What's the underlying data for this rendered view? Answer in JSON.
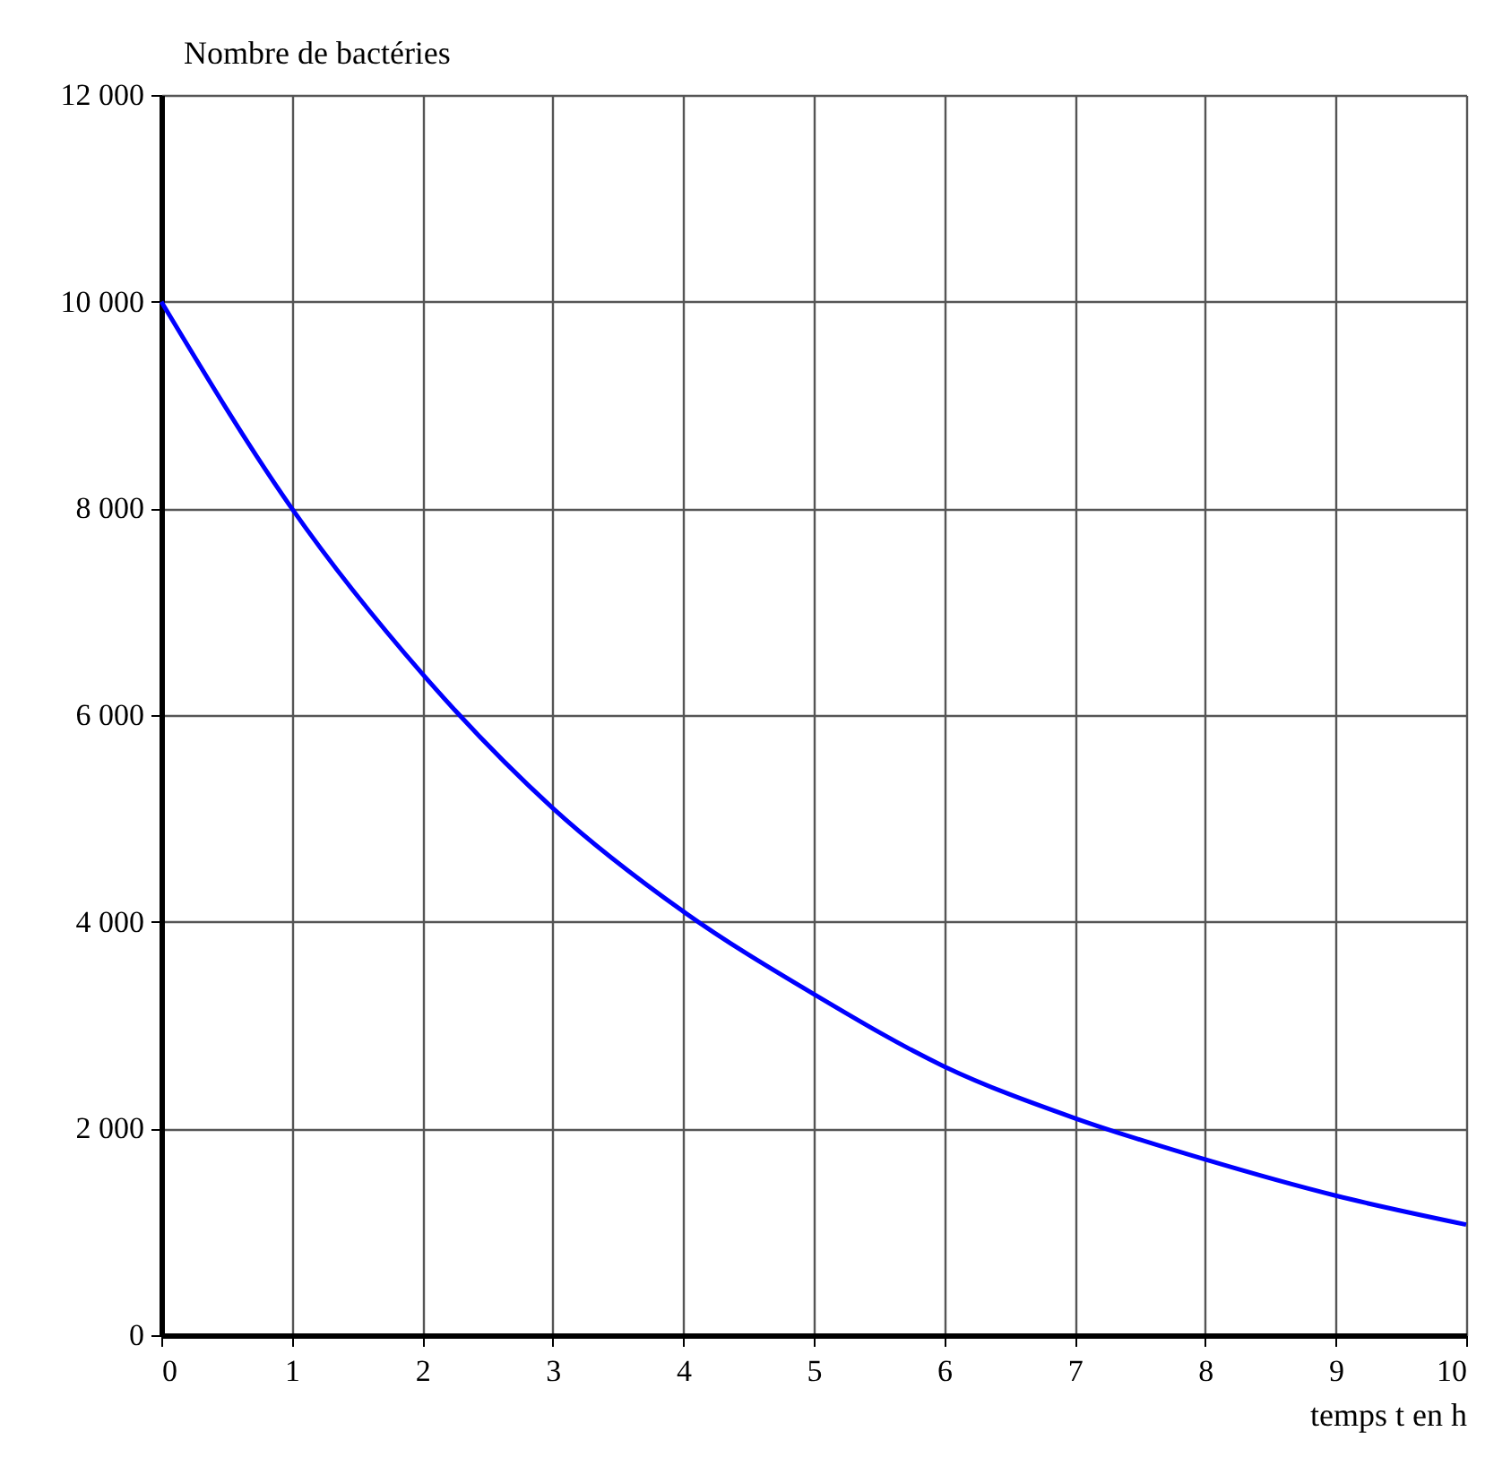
{
  "chart_data": {
    "type": "line",
    "xlabel": "temps t en h",
    "ylabel": "Nombre de bactéries",
    "x": [
      0,
      1,
      2,
      3,
      4,
      5,
      6,
      7,
      8,
      9,
      10
    ],
    "series": [
      {
        "color": "#0000ff",
        "values": [
          10000,
          8000,
          6400,
          5100,
          4100,
          3300,
          2600,
          2100,
          1700,
          1350,
          1070
        ]
      }
    ],
    "xlim": [
      0,
      10
    ],
    "xticks": [
      0,
      1,
      2,
      3,
      4,
      5,
      6,
      7,
      8,
      9,
      10
    ],
    "ylim": [
      0,
      12000
    ],
    "yticks": [
      0,
      {
        "value": 2000,
        "label": "2 000"
      },
      {
        "value": 4000,
        "label": "4 000"
      },
      {
        "value": 6000,
        "label": "6 000"
      },
      {
        "value": 8000,
        "label": "8 000"
      },
      {
        "value": 10000,
        "label": "10 000"
      },
      {
        "value": 12000,
        "label": "12 000"
      }
    ],
    "grid": true,
    "marker": "none",
    "line_style": "solid"
  }
}
